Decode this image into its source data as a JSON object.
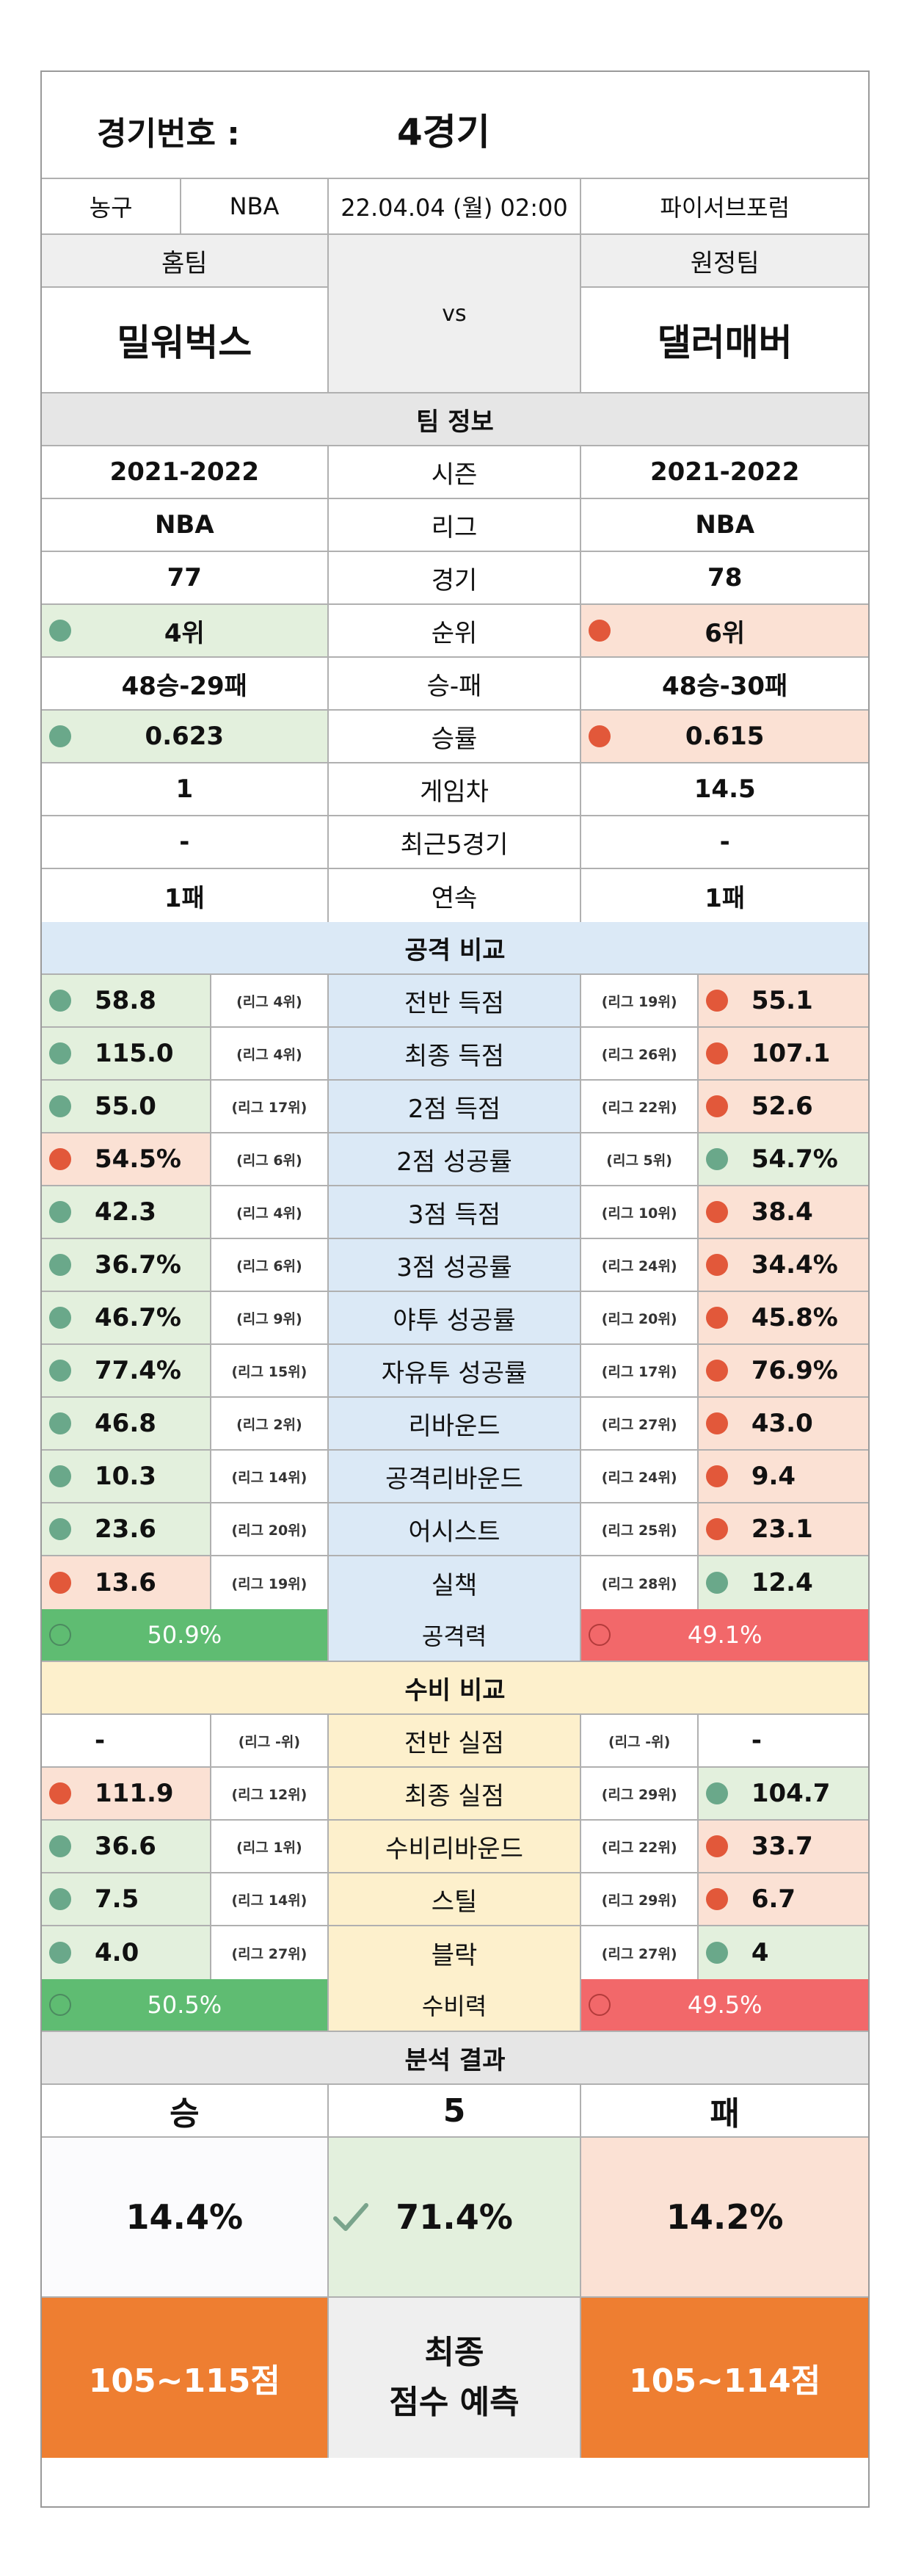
{
  "header": {
    "game_no_label": "경기번호 :",
    "game_no_value": "4경기"
  },
  "meta": {
    "sport": "농구",
    "league": "NBA",
    "datetime": "22.04.04 (월) 02:00",
    "venue": "파이서브포럼"
  },
  "teams": {
    "home_label": "홈팀",
    "away_label": "원정팀",
    "home_name": "밀워벅스",
    "away_name": "댈러매버",
    "vs": "vs"
  },
  "team_info": {
    "title": "팀 정보",
    "rows": [
      {
        "label": "시즌",
        "home": "2021-2022",
        "away": "2021-2022",
        "home_dot": "",
        "away_dot": ""
      },
      {
        "label": "리그",
        "home": "NBA",
        "away": "NBA",
        "home_dot": "",
        "away_dot": ""
      },
      {
        "label": "경기",
        "home": "77",
        "away": "78",
        "home_dot": "",
        "away_dot": ""
      },
      {
        "label": "순위",
        "home": "4위",
        "away": "6위",
        "home_dot": "green",
        "away_dot": "red"
      },
      {
        "label": "승-패",
        "home": "48승-29패",
        "away": "48승-30패",
        "home_dot": "",
        "away_dot": ""
      },
      {
        "label": "승률",
        "home": "0.623",
        "away": "0.615",
        "home_dot": "green",
        "away_dot": "red"
      },
      {
        "label": "게임차",
        "home": "1",
        "away": "14.5",
        "home_dot": "",
        "away_dot": ""
      },
      {
        "label": "최근5경기",
        "home": "-",
        "away": "-",
        "home_dot": "",
        "away_dot": ""
      },
      {
        "label": "연속",
        "home": "1패",
        "away": "1패",
        "home_dot": "",
        "away_dot": ""
      }
    ]
  },
  "offense": {
    "title": "공격 비교",
    "rows": [
      {
        "label": "전반 득점",
        "home": "58.8",
        "home_rank": "(리그 4위)",
        "away": "55.1",
        "away_rank": "(리그 19위)",
        "home_dot": "green",
        "away_dot": "red"
      },
      {
        "label": "최종 득점",
        "home": "115.0",
        "home_rank": "(리그 4위)",
        "away": "107.1",
        "away_rank": "(리그 26위)",
        "home_dot": "green",
        "away_dot": "red"
      },
      {
        "label": "2점 득점",
        "home": "55.0",
        "home_rank": "(리그 17위)",
        "away": "52.6",
        "away_rank": "(리그 22위)",
        "home_dot": "green",
        "away_dot": "red"
      },
      {
        "label": "2점 성공률",
        "home": "54.5%",
        "home_rank": "(리그 6위)",
        "away": "54.7%",
        "away_rank": "(리그 5위)",
        "home_dot": "red",
        "away_dot": "green"
      },
      {
        "label": "3점 득점",
        "home": "42.3",
        "home_rank": "(리그 4위)",
        "away": "38.4",
        "away_rank": "(리그 10위)",
        "home_dot": "green",
        "away_dot": "red"
      },
      {
        "label": "3점 성공률",
        "home": "36.7%",
        "home_rank": "(리그 6위)",
        "away": "34.4%",
        "away_rank": "(리그 24위)",
        "home_dot": "green",
        "away_dot": "red"
      },
      {
        "label": "야투 성공률",
        "home": "46.7%",
        "home_rank": "(리그 9위)",
        "away": "45.8%",
        "away_rank": "(리그 20위)",
        "home_dot": "green",
        "away_dot": "red"
      },
      {
        "label": "자유투 성공률",
        "home": "77.4%",
        "home_rank": "(리그 15위)",
        "away": "76.9%",
        "away_rank": "(리그 17위)",
        "home_dot": "green",
        "away_dot": "red"
      },
      {
        "label": "리바운드",
        "home": "46.8",
        "home_rank": "(리그 2위)",
        "away": "43.0",
        "away_rank": "(리그 27위)",
        "home_dot": "green",
        "away_dot": "red"
      },
      {
        "label": "공격리바운드",
        "home": "10.3",
        "home_rank": "(리그 14위)",
        "away": "9.4",
        "away_rank": "(리그 24위)",
        "home_dot": "green",
        "away_dot": "red"
      },
      {
        "label": "어시스트",
        "home": "23.6",
        "home_rank": "(리그 20위)",
        "away": "23.1",
        "away_rank": "(리그 25위)",
        "home_dot": "green",
        "away_dot": "red"
      },
      {
        "label": "실책",
        "home": "13.6",
        "home_rank": "(리그 19위)",
        "away": "12.4",
        "away_rank": "(리그 28위)",
        "home_dot": "red",
        "away_dot": "green"
      }
    ],
    "power_label": "공격력",
    "power_home": "50.9%",
    "power_away": "49.1%"
  },
  "defense": {
    "title": "수비 비교",
    "rows": [
      {
        "label": "전반 실점",
        "home": "-",
        "home_rank": "(리그 -위)",
        "away": "-",
        "away_rank": "(리그 -위)",
        "home_dot": "",
        "away_dot": ""
      },
      {
        "label": "최종 실점",
        "home": "111.9",
        "home_rank": "(리그 12위)",
        "away": "104.7",
        "away_rank": "(리그 29위)",
        "home_dot": "red",
        "away_dot": "green"
      },
      {
        "label": "수비리바운드",
        "home": "36.6",
        "home_rank": "(리그 1위)",
        "away": "33.7",
        "away_rank": "(리그 22위)",
        "home_dot": "green",
        "away_dot": "red"
      },
      {
        "label": "스틸",
        "home": "7.5",
        "home_rank": "(리그 14위)",
        "away": "6.7",
        "away_rank": "(리그 29위)",
        "home_dot": "green",
        "away_dot": "red"
      },
      {
        "label": "블락",
        "home": "4.0",
        "home_rank": "(리그 27위)",
        "away": "4",
        "away_rank": "(리그 27위)",
        "home_dot": "green",
        "away_dot": "green"
      }
    ],
    "power_label": "수비력",
    "power_home": "50.5%",
    "power_away": "49.5%"
  },
  "analysis": {
    "title": "분석 결과",
    "win_label": "승",
    "draw_label": "5",
    "lose_label": "패",
    "win_pct": "14.4%",
    "draw_pct": "71.4%",
    "lose_pct": "14.2%",
    "home_score": "105~115점",
    "predict_line1": "최종",
    "predict_line2": "점수 예측",
    "away_score": "105~114점"
  },
  "colors": {
    "good": "#e3f0dd",
    "bad": "#fbe1d4",
    "good_dot": "#6aa88a",
    "bad_dot": "#e2583a",
    "orange": "#ee7e31"
  }
}
